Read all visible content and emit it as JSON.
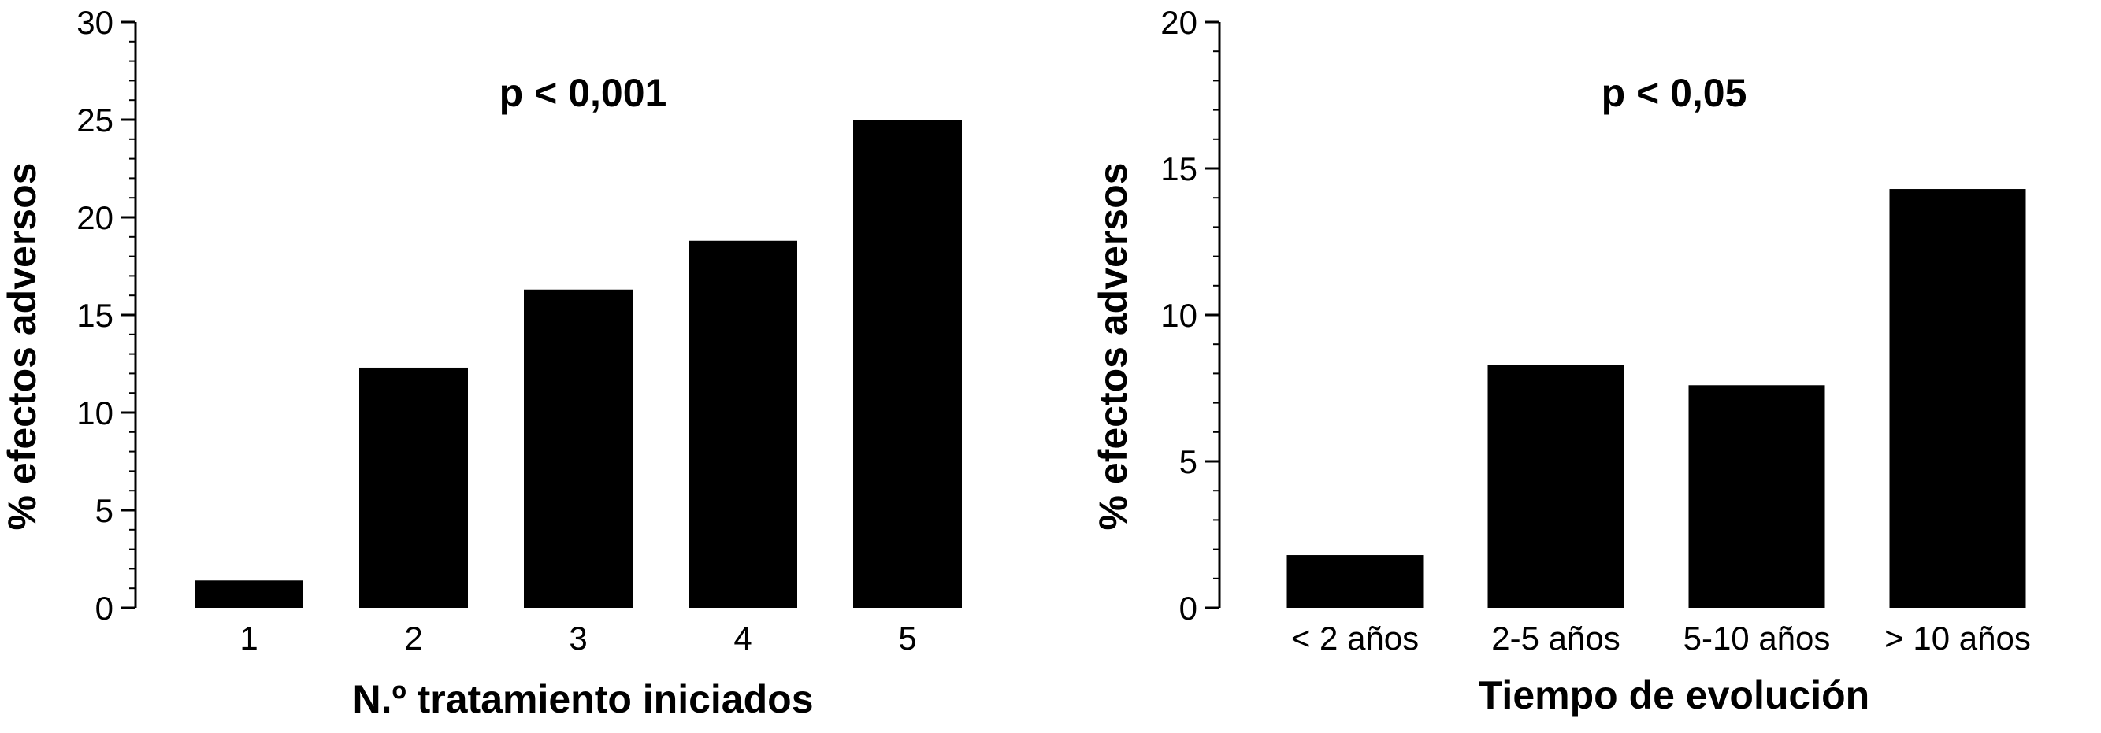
{
  "chart_data": [
    {
      "type": "bar",
      "title": "",
      "annotation": "p < 0,001",
      "xlabel": "N.º tratamiento iniciados",
      "ylabel": "% efectos adversos",
      "categories": [
        "1",
        "2",
        "3",
        "4",
        "5"
      ],
      "values": [
        1.4,
        12.3,
        16.3,
        18.8,
        25.0
      ],
      "ylim": [
        0,
        30
      ],
      "yticks": [
        "0",
        "5",
        "10",
        "15",
        "20",
        "25",
        "30"
      ],
      "minor_tick_step": 1,
      "bar_color": "#000000",
      "grid": false,
      "legend": "none"
    },
    {
      "type": "bar",
      "title": "",
      "annotation": "p < 0,05",
      "xlabel": "Tiempo de evolución",
      "ylabel": "% efectos adversos",
      "categories": [
        "< 2 años",
        "2-5 años",
        "5-10 años",
        "> 10 años"
      ],
      "values": [
        1.8,
        8.3,
        7.6,
        14.3
      ],
      "ylim": [
        0,
        20
      ],
      "yticks": [
        "0",
        "5",
        "10",
        "15",
        "20"
      ],
      "minor_tick_step": 1,
      "bar_color": "#000000",
      "grid": false,
      "legend": "none"
    }
  ]
}
